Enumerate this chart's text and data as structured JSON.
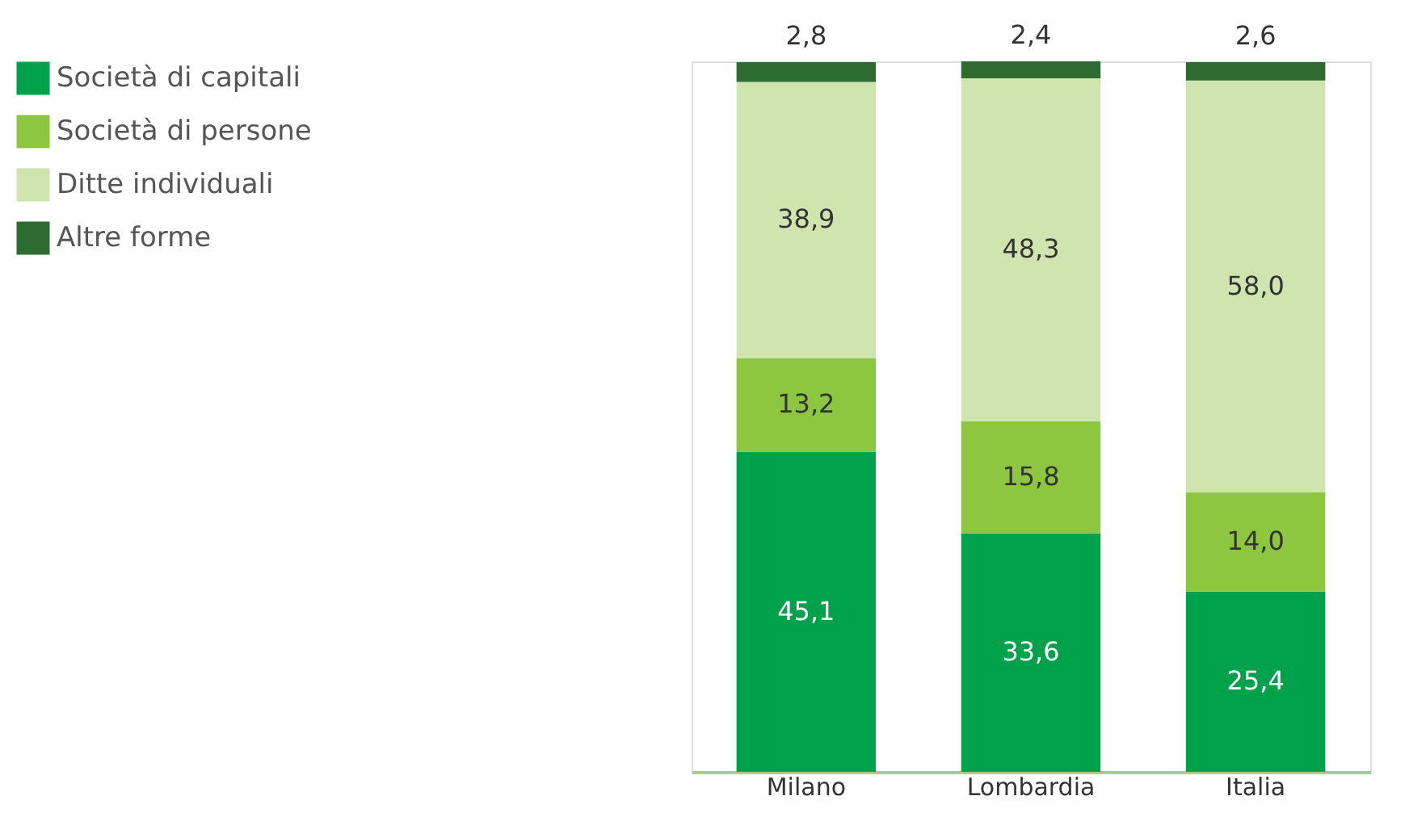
{
  "chart_data": {
    "type": "bar",
    "stacked": true,
    "legend": "left",
    "grid": false,
    "categories": [
      "Milano",
      "Lombardia",
      "Italia"
    ],
    "series": [
      {
        "name": "Società di capitali",
        "color": "#00a14b",
        "values": [
          45.1,
          33.6,
          25.4
        ],
        "value_labels": [
          "45,1",
          "33,6",
          "25,4"
        ]
      },
      {
        "name": "Società di persone",
        "color": "#8dc63f",
        "values": [
          13.2,
          15.8,
          14.0
        ],
        "value_labels": [
          "13,2",
          "15,8",
          "14,0"
        ]
      },
      {
        "name": "Ditte individuali",
        "color": "#d0e4b0",
        "values": [
          38.9,
          48.3,
          58.0
        ],
        "value_labels": [
          "38,9",
          "48,3",
          "58,0"
        ]
      },
      {
        "name": "Altre forme",
        "color": "#2e6b30",
        "values": [
          2.8,
          2.4,
          2.6
        ],
        "value_labels": [
          "2,8",
          "2,4",
          "2,6"
        ]
      }
    ]
  }
}
